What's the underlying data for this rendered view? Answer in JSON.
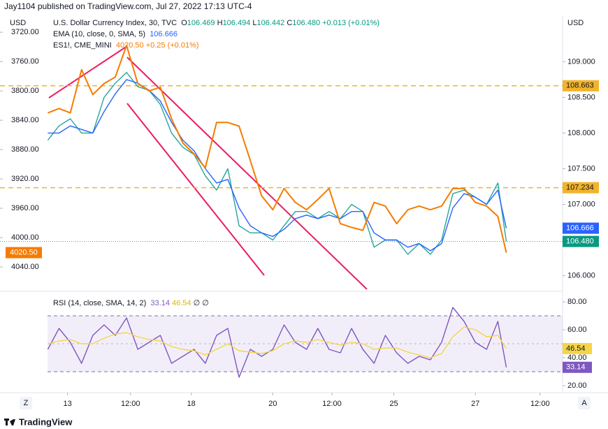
{
  "header": {
    "attribution": "Jay1104 published on TradingView.com, Jul 27, 2022 17:13 UTC-4"
  },
  "footer": {
    "brand": "TradingView",
    "left_button": "Z",
    "right_button": "A"
  },
  "chart_data": [
    {
      "type": "line",
      "legend": {
        "ohlc": [
          {
            "label": "O",
            "value": "106.469"
          },
          {
            "label": "H",
            "value": "106.494"
          },
          {
            "label": "L",
            "value": "106.442"
          },
          {
            "label": "C",
            "value": "106.480"
          }
        ],
        "change": "+0.013 (+0.01%)",
        "es_change": "+0.25 (+0.01%)"
      },
      "y_axis_label": "USD",
      "y2_axis_label": "USD",
      "x": [
        8.5,
        10.5,
        12.5,
        14.5,
        16.5,
        18.5,
        20.5,
        22.5,
        24.5,
        26.5,
        28.5,
        30.5,
        32.5,
        34.5,
        36.5,
        38.5,
        40.5,
        42.5,
        44.5,
        46.5,
        48.5,
        50.5,
        52.5,
        54.5,
        56.5,
        58.5,
        60.5,
        62.5,
        64.5,
        66.5,
        68.5,
        70.5,
        72.5,
        74.5,
        76.5,
        78.5,
        80.5,
        82.5,
        84.5,
        86.5,
        88.5,
        90
      ],
      "xlim": [
        0,
        100
      ],
      "xticks": [
        {
          "value": 12,
          "label": "13"
        },
        {
          "value": 23.2,
          "label": "12:00"
        },
        {
          "value": 34,
          "label": "18"
        },
        {
          "value": 48.5,
          "label": "20"
        },
        {
          "value": 59,
          "label": "12:00"
        },
        {
          "value": 70,
          "label": "25"
        },
        {
          "value": 84.5,
          "label": "27"
        },
        {
          "value": 96,
          "label": "12:00"
        }
      ],
      "ylim": [
        105.8,
        109.65
      ],
      "yticks": [
        {
          "value": 106,
          "label": "106.000"
        },
        {
          "value": 107,
          "label": "107.000"
        },
        {
          "value": 107.5,
          "label": "107.500"
        },
        {
          "value": 108,
          "label": "108.000"
        },
        {
          "value": 108.5,
          "label": "108.500"
        },
        {
          "value": 109,
          "label": "109.000"
        }
      ],
      "y2lim": [
        3697,
        4071.4
      ],
      "y2_inverted": true,
      "y2ticks": [
        {
          "value": 3720,
          "label": "3720.00"
        },
        {
          "value": 3760,
          "label": "3760.00"
        },
        {
          "value": 3800,
          "label": "3800.00"
        },
        {
          "value": 3840,
          "label": "3840.00"
        },
        {
          "value": 3880,
          "label": "3880.00"
        },
        {
          "value": 3920,
          "label": "3920.00"
        },
        {
          "value": 3960,
          "label": "3960.00"
        },
        {
          "value": 4000,
          "label": "4000.00"
        },
        {
          "value": 4040,
          "label": "4040.00"
        }
      ],
      "series": [
        {
          "name": "U.S. Dollar Currency Index, 30, TVC",
          "color": "#26a69a",
          "last_label": "106.480",
          "values": [
            107.9,
            108.1,
            108.2,
            108.0,
            108.0,
            108.5,
            108.7,
            108.85,
            108.65,
            108.6,
            108.4,
            108.0,
            107.8,
            107.7,
            107.4,
            107.2,
            107.5,
            106.7,
            106.6,
            106.6,
            106.5,
            106.7,
            106.9,
            106.9,
            106.8,
            106.9,
            106.8,
            107.0,
            106.9,
            106.4,
            106.5,
            106.5,
            106.3,
            106.45,
            106.3,
            106.5,
            107.15,
            107.2,
            107.1,
            107.0,
            107.3,
            106.48
          ]
        },
        {
          "name": "EMA (10, close, 0, SMA, 5)",
          "color": "#2962ff",
          "values": [
            108.0,
            108.0,
            108.1,
            108.05,
            108.0,
            108.3,
            108.55,
            108.75,
            108.7,
            108.6,
            108.45,
            108.15,
            107.9,
            107.75,
            107.5,
            107.3,
            107.35,
            106.95,
            106.7,
            106.6,
            106.55,
            106.65,
            106.8,
            106.85,
            106.8,
            106.85,
            106.8,
            106.9,
            106.9,
            106.6,
            106.5,
            106.5,
            106.4,
            106.45,
            106.35,
            106.45,
            106.95,
            107.15,
            107.1,
            107.0,
            107.2,
            106.666
          ]
        },
        {
          "name": "ES1!, CME_MINI",
          "color": "#f57c00",
          "axis": "y2",
          "last_label": "4020.50",
          "values": [
            3830,
            3824,
            3830,
            3771,
            3805,
            3790,
            3781,
            3738,
            3790,
            3800,
            3795,
            3838,
            3871,
            3886,
            3905,
            3843,
            3843,
            3848,
            3895,
            3943,
            3962,
            3933,
            3952,
            3962,
            3948,
            3933,
            3981,
            3986,
            3990,
            3952,
            3957,
            3981,
            3962,
            3957,
            3962,
            3957,
            3933,
            3933,
            3952,
            3957,
            3971,
            4020.5
          ]
        }
      ],
      "price_lines": [
        {
          "value": 108.663,
          "label": "108.663",
          "color": "#f2b32a"
        },
        {
          "value": 107.234,
          "label": "107.234",
          "color": "#f2b32a"
        }
      ]
    },
    {
      "type": "line",
      "title": "RSI (14, close, SMA, 14, 2)",
      "x": [
        8.5,
        10.5,
        12.5,
        14.5,
        16.5,
        18.5,
        20.5,
        22.5,
        24.5,
        26.5,
        28.5,
        30.5,
        32.5,
        34.5,
        36.5,
        38.5,
        40.5,
        42.5,
        44.5,
        46.5,
        48.5,
        50.5,
        52.5,
        54.5,
        56.5,
        58.5,
        60.5,
        62.5,
        64.5,
        66.5,
        68.5,
        70.5,
        72.5,
        74.5,
        76.5,
        78.5,
        80.5,
        82.5,
        84.5,
        86.5,
        88.5,
        90
      ],
      "xlim": [
        0,
        100
      ],
      "ylim": [
        16,
        86
      ],
      "yticks": [
        {
          "value": 20,
          "label": "20.00"
        },
        {
          "value": 40,
          "label": "40.00"
        },
        {
          "value": 60,
          "label": "60.00"
        },
        {
          "value": 80,
          "label": "80.00"
        }
      ],
      "bands": [
        30,
        70
      ],
      "middle": 50,
      "series": [
        {
          "name": "RSI",
          "color": "#7e57c2",
          "values": [
            46,
            61,
            51,
            36,
            56,
            63.5,
            56,
            68.5,
            46,
            51,
            56,
            36,
            41,
            46,
            36,
            56,
            61,
            26,
            46,
            41,
            46,
            63.5,
            51,
            46,
            61,
            46,
            43.5,
            61,
            46,
            36,
            56,
            43.5,
            36,
            41,
            38.5,
            51,
            76,
            66,
            51,
            46,
            66,
            33.14
          ]
        },
        {
          "name": "RSI-based MA",
          "color": "#f5d547",
          "values": [
            50,
            52,
            53,
            50,
            50,
            54,
            57,
            58,
            55,
            53,
            52,
            48,
            46,
            45,
            42,
            46,
            50,
            45,
            44,
            43,
            45,
            50,
            52,
            51,
            53,
            51,
            49,
            51,
            50,
            46,
            47,
            47,
            44,
            42,
            40,
            43,
            55,
            62,
            60,
            55,
            56,
            46.54
          ]
        }
      ]
    }
  ]
}
